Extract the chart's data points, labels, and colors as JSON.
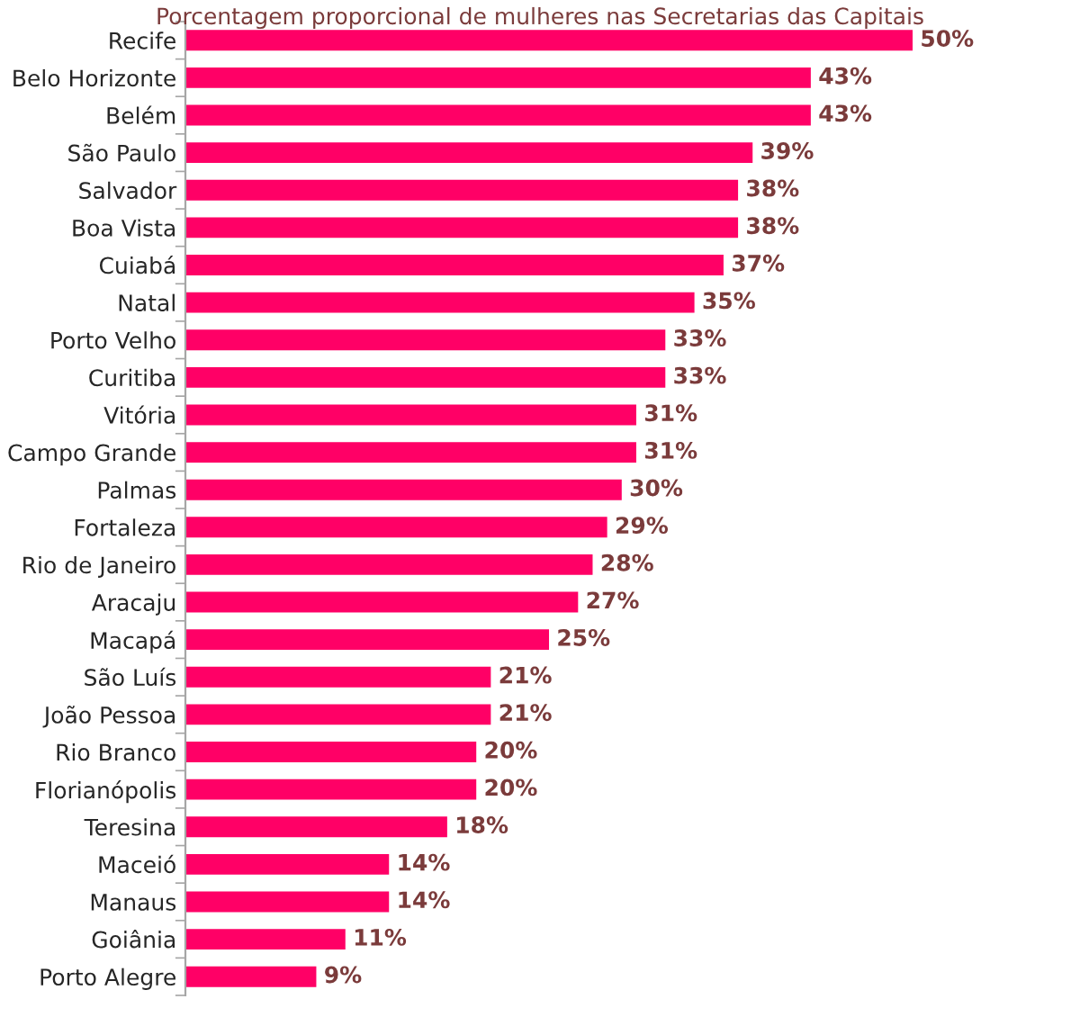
{
  "chart_data": {
    "type": "bar",
    "orientation": "horizontal",
    "title": "Porcentagem proporcional de mulheres nas Secretarias das Capitais",
    "categories": [
      "Recife",
      "Belo Horizonte",
      "Belém",
      "São Paulo",
      "Salvador",
      "Boa Vista",
      "Cuiabá",
      "Natal",
      "Porto Velho",
      "Curitiba",
      "Vitória",
      "Campo Grande",
      "Palmas",
      "Fortaleza",
      "Rio de Janeiro",
      "Aracaju",
      "Macapá",
      "São Luís",
      "João Pessoa",
      "Rio Branco",
      "Florianópolis",
      "Teresina",
      "Maceió",
      "Manaus",
      "Goiânia",
      "Porto Alegre"
    ],
    "values": [
      50,
      43,
      43,
      39,
      38,
      38,
      37,
      35,
      33,
      33,
      31,
      31,
      30,
      29,
      28,
      27,
      25,
      21,
      21,
      20,
      20,
      18,
      14,
      14,
      11,
      9
    ],
    "value_labels": [
      "50%",
      "43%",
      "43%",
      "39%",
      "38%",
      "38%",
      "37%",
      "35%",
      "33%",
      "33%",
      "31%",
      "31%",
      "30%",
      "29%",
      "28%",
      "27%",
      "25%",
      "21%",
      "21%",
      "20%",
      "20%",
      "18%",
      "14%",
      "14%",
      "11%",
      "9%"
    ],
    "color": "#ff0066",
    "xlim": [
      0,
      50
    ],
    "tick_labels": "y",
    "grid": false,
    "legend": false
  }
}
